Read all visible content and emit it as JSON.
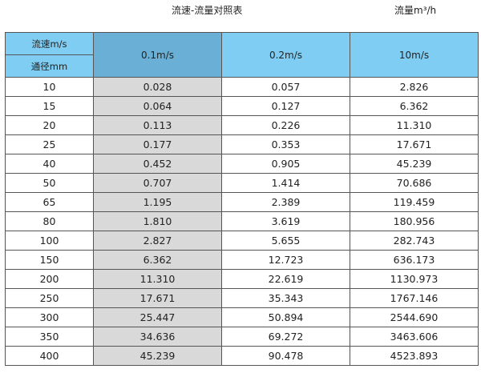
{
  "title": "流速-流量对照表",
  "unit_title": "流量m³/h",
  "header": {
    "velocity_label": "流速m/s",
    "diameter_label": "通径mm",
    "columns": [
      "0.1m/s",
      "0.2m/s",
      "10m/s"
    ]
  },
  "rows": [
    [
      "10",
      "0.028",
      "0.057",
      "2.826"
    ],
    [
      "15",
      "0.064",
      "0.127",
      "6.362"
    ],
    [
      "20",
      "0.113",
      "0.226",
      "11.310"
    ],
    [
      "25",
      "0.177",
      "0.353",
      "17.671"
    ],
    [
      "40",
      "0.452",
      "0.905",
      "45.239"
    ],
    [
      "50",
      "0.707",
      "1.414",
      "70.686"
    ],
    [
      "65",
      "1.195",
      "2.389",
      "119.459"
    ],
    [
      "80",
      "1.810",
      "3.619",
      "180.956"
    ],
    [
      "100",
      "2.827",
      "5.655",
      "282.743"
    ],
    [
      "150",
      "6.362",
      "12.723",
      "636.173"
    ],
    [
      "200",
      "11.310",
      "22.619",
      "1130.973"
    ],
    [
      "250",
      "17.671",
      "35.343",
      "1767.146"
    ],
    [
      "300",
      "25.447",
      "50.894",
      "2544.690"
    ],
    [
      "350",
      "34.636",
      "69.272",
      "3463.606"
    ],
    [
      "400",
      "45.239",
      "90.478",
      "4523.893"
    ]
  ],
  "colors": {
    "header": "#7fcdf3",
    "header_highlight": "#6ab0d6",
    "highlight_column": "#d9d9d9"
  }
}
